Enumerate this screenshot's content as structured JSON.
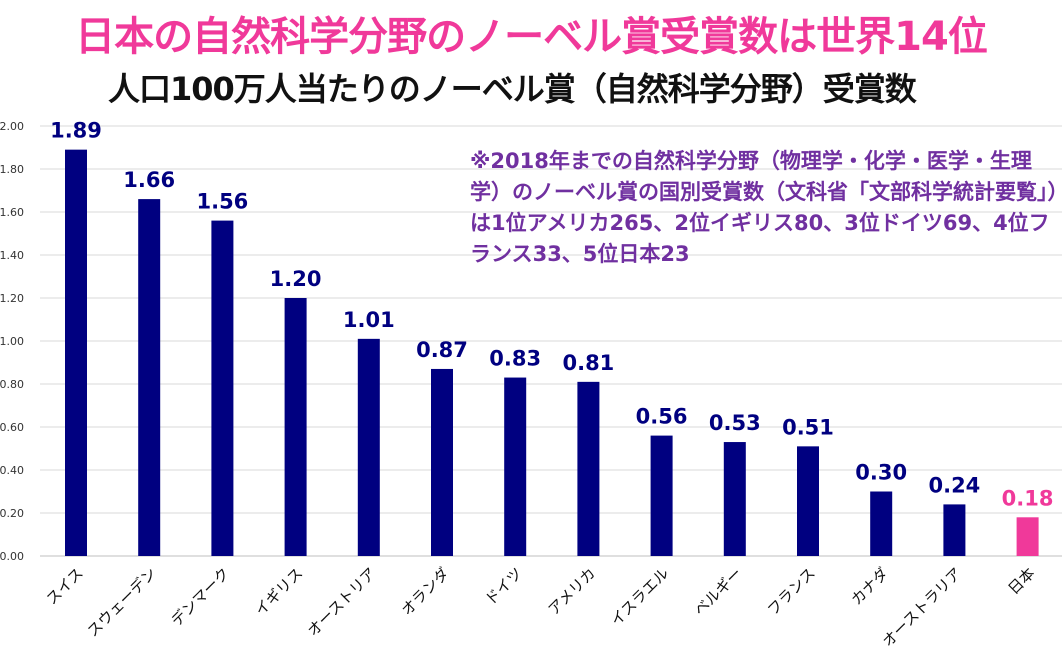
{
  "title": "日本の自然科学分野のノーベル賞受賞数は世界14位",
  "note": "※2018年までの自然科学分野（物理学・化学・医学・生理学）のノーベル賞の国別受賞数（文科省「文部科学統計要覧」）は1位アメリカ265、2位イギリス80、3位ドイツ69、4位フランス33、5位日本23",
  "colors": {
    "bar": "#000080",
    "highlight": "#f0399a",
    "title": "#f0399a",
    "note": "#7030a0",
    "grid": "#d9d9d9"
  },
  "chart_data": {
    "type": "bar",
    "title": "人口100万人当たりのノーベル賞（自然科学分野）受賞数",
    "categories": [
      "スイス",
      "スウェーデン",
      "デンマーク",
      "イギリス",
      "オーストリア",
      "オランダ",
      "ドイツ",
      "アメリカ",
      "イスラエル",
      "ベルギー",
      "フランス",
      "カナダ",
      "オーストラリア",
      "日本"
    ],
    "values": [
      1.89,
      1.66,
      1.56,
      1.2,
      1.01,
      0.87,
      0.83,
      0.81,
      0.56,
      0.53,
      0.51,
      0.3,
      0.24,
      0.18
    ],
    "data_labels": [
      "1.89",
      "1.66",
      "1.56",
      "1.20",
      "1.01",
      "0.87",
      "0.83",
      "0.81",
      "0.56",
      "0.53",
      "0.51",
      "0.30",
      "0.24",
      "0.18"
    ],
    "highlight_category": "日本",
    "ylim": [
      0,
      2.0
    ],
    "yticks": [
      "0.00",
      "0.20",
      "0.40",
      "0.60",
      "0.80",
      "1.00",
      "1.20",
      "1.40",
      "1.60",
      "1.80",
      "2.00"
    ],
    "grid": true,
    "legend": "none"
  }
}
